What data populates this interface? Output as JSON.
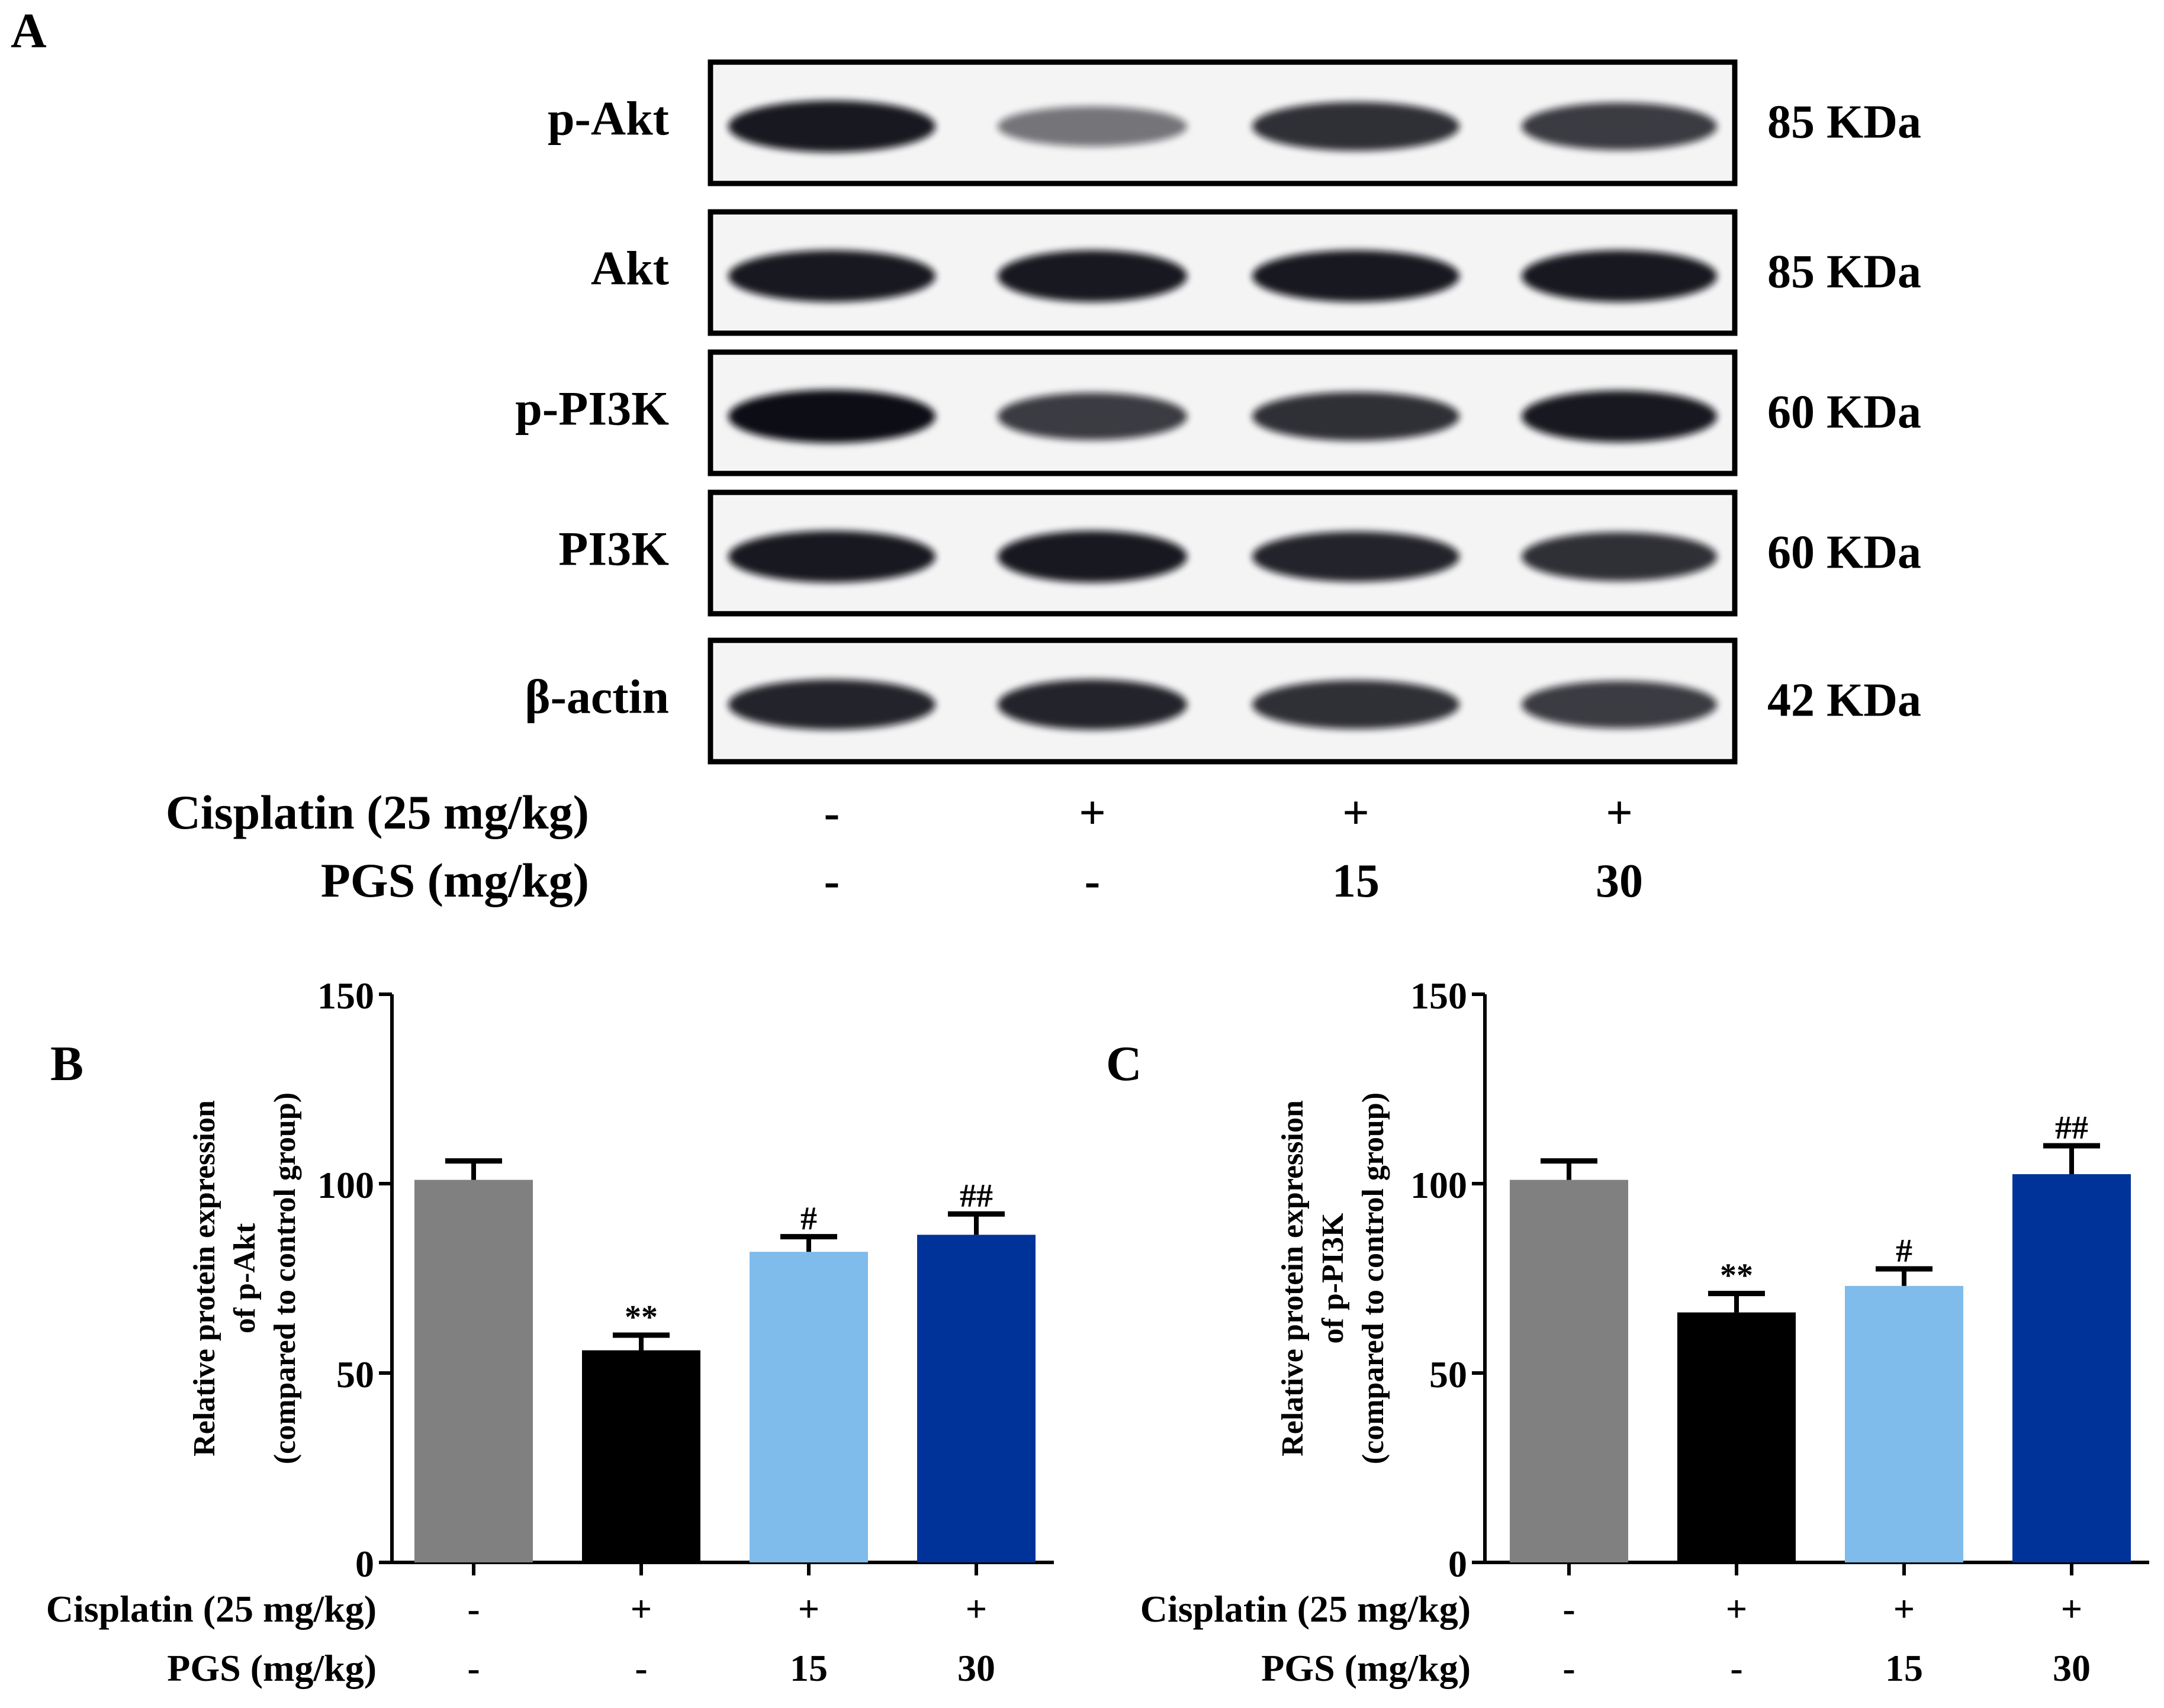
{
  "panel_labels": {
    "a": "A",
    "b": "B",
    "c": "C"
  },
  "blot": {
    "rows": [
      {
        "protein": "p-Akt",
        "size": "85 KDa",
        "band_intensity": [
          0.95,
          0.55,
          0.85,
          0.8
        ]
      },
      {
        "protein": "Akt",
        "size": "85 KDa",
        "band_intensity": [
          0.95,
          0.95,
          0.95,
          0.95
        ]
      },
      {
        "protein": "p-PI3K",
        "size": "60 KDa",
        "band_intensity": [
          1.0,
          0.8,
          0.85,
          0.95
        ]
      },
      {
        "protein": "PI3K",
        "size": "60 KDa",
        "band_intensity": [
          0.95,
          0.95,
          0.9,
          0.85
        ]
      },
      {
        "protein": "β-actin",
        "size": "42 KDa",
        "band_intensity": [
          0.9,
          0.9,
          0.85,
          0.8
        ]
      }
    ],
    "treatments": [
      {
        "label": "Cisplatin (25 mg/kg)",
        "values": [
          "-",
          "+",
          "+",
          "+"
        ]
      },
      {
        "label": "PGS (mg/kg)",
        "values": [
          "-",
          "-",
          "15",
          "30"
        ]
      }
    ]
  },
  "colors": {
    "control": "#808080",
    "cisplatin": "#000000",
    "pgs15": "#7fbbeb",
    "pgs30": "#003399"
  },
  "chart_data": [
    {
      "type": "bar",
      "panel": "B",
      "ylabel_lines": [
        "Relative protein expression",
        "of p-Akt",
        "(compared to control group)"
      ],
      "ylim": [
        0,
        150
      ],
      "yticks": [
        0,
        50,
        100,
        150
      ],
      "values": [
        101,
        56,
        82,
        86.5
      ],
      "errors": [
        5,
        4,
        4,
        5.5
      ],
      "annotations": [
        "",
        "**",
        "#",
        "##"
      ],
      "colors": [
        "#808080",
        "#000000",
        "#7fbbeb",
        "#003399"
      ],
      "treatments": [
        {
          "label": "Cisplatin (25 mg/kg)",
          "values": [
            "-",
            "+",
            "+",
            "+"
          ]
        },
        {
          "label": "PGS (mg/kg)",
          "values": [
            "-",
            "-",
            "15",
            "30"
          ]
        }
      ]
    },
    {
      "type": "bar",
      "panel": "C",
      "ylabel_lines": [
        "Relative protein expression",
        "of p-PI3K",
        "(compared to control group)"
      ],
      "ylim": [
        0,
        150
      ],
      "yticks": [
        0,
        50,
        100,
        150
      ],
      "values": [
        101,
        66,
        73,
        102.5
      ],
      "errors": [
        5,
        5,
        4.5,
        7.5
      ],
      "annotations": [
        "",
        "**",
        "#",
        "##"
      ],
      "colors": [
        "#808080",
        "#000000",
        "#7fbbeb",
        "#003399"
      ],
      "treatments": [
        {
          "label": "Cisplatin (25 mg/kg)",
          "values": [
            "-",
            "+",
            "+",
            "+"
          ]
        },
        {
          "label": "PGS (mg/kg)",
          "values": [
            "-",
            "-",
            "15",
            "30"
          ]
        }
      ]
    }
  ]
}
